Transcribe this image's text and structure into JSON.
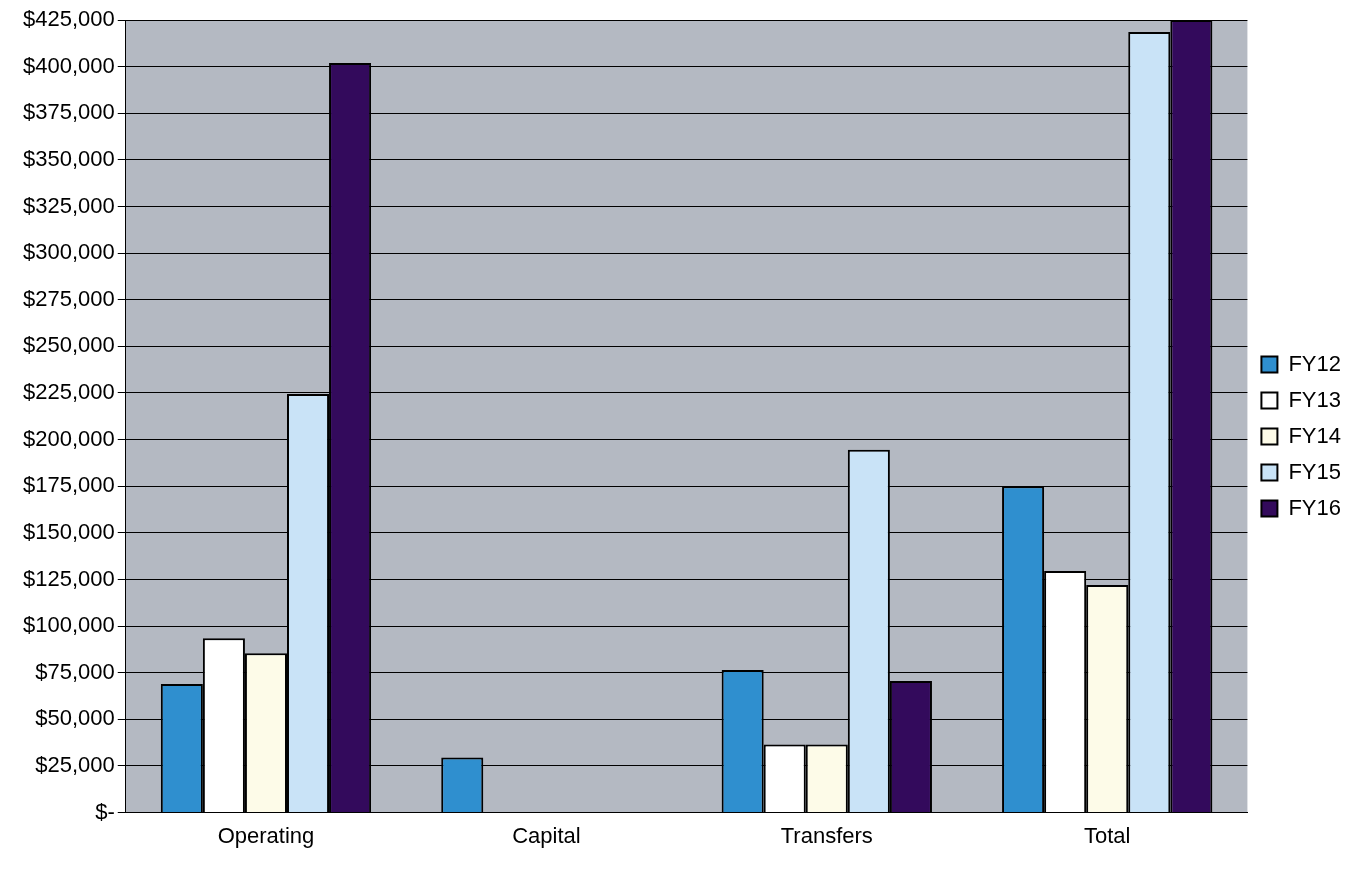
{
  "chart_data": {
    "type": "bar",
    "categories": [
      "Operating",
      "Capital",
      "Transfers",
      "Total"
    ],
    "series": [
      {
        "name": "FY12",
        "color": "#2f8fcf",
        "values": [
          69000,
          29500,
          76500,
          175000
        ]
      },
      {
        "name": "FY13",
        "color": "#ffffff",
        "values": [
          93500,
          0,
          36500,
          129500
        ]
      },
      {
        "name": "FY14",
        "color": "#fdfbe8",
        "values": [
          85500,
          0,
          36500,
          122000
        ]
      },
      {
        "name": "FY15",
        "color": "#c9e3f7",
        "values": [
          224500,
          0,
          194500,
          418500
        ]
      },
      {
        "name": "FY16",
        "color": "#330a5c",
        "values": [
          402000,
          0,
          70500,
          425000
        ]
      }
    ],
    "ylim": [
      0,
      425000
    ],
    "yticks": [
      {
        "value": 0,
        "label": "$-"
      },
      {
        "value": 25000,
        "label": "$25,000"
      },
      {
        "value": 50000,
        "label": "$50,000"
      },
      {
        "value": 75000,
        "label": "$75,000"
      },
      {
        "value": 100000,
        "label": "$100,000"
      },
      {
        "value": 125000,
        "label": "$125,000"
      },
      {
        "value": 150000,
        "label": "$150,000"
      },
      {
        "value": 175000,
        "label": "$175,000"
      },
      {
        "value": 200000,
        "label": "$200,000"
      },
      {
        "value": 225000,
        "label": "$225,000"
      },
      {
        "value": 250000,
        "label": "$250,000"
      },
      {
        "value": 275000,
        "label": "$275,000"
      },
      {
        "value": 300000,
        "label": "$300,000"
      },
      {
        "value": 325000,
        "label": "$325,000"
      },
      {
        "value": 350000,
        "label": "$350,000"
      },
      {
        "value": 375000,
        "label": "$375,000"
      },
      {
        "value": 400000,
        "label": "$400,000"
      },
      {
        "value": 425000,
        "label": "$425,000"
      }
    ],
    "grid": "y",
    "legend": "right"
  }
}
